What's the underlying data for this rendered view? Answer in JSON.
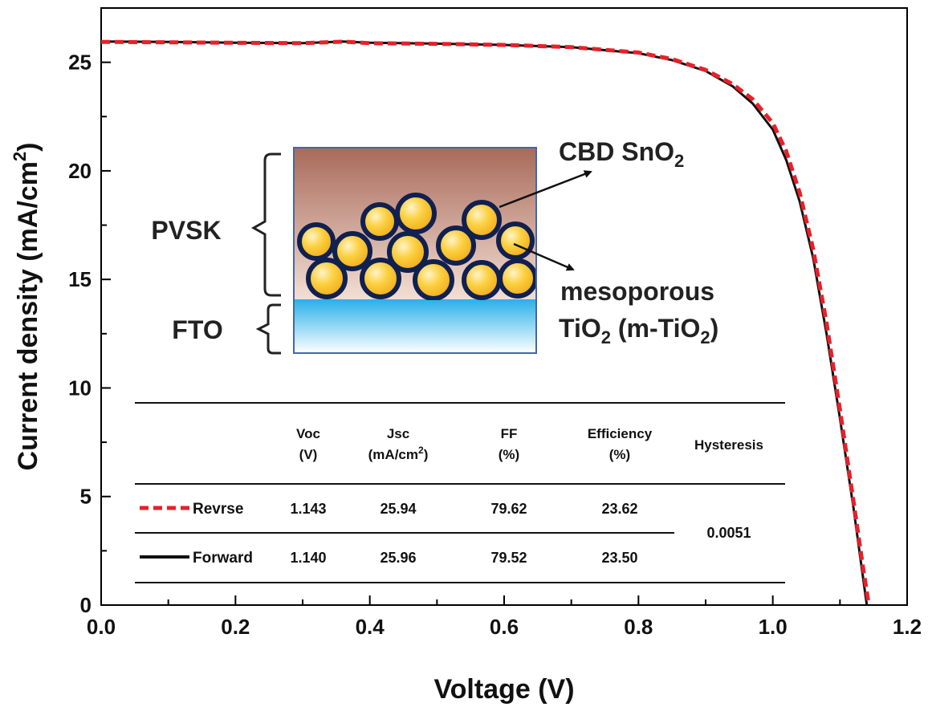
{
  "chart_data": {
    "type": "line",
    "title": "",
    "xlabel": "Voltage (V)",
    "ylabel_main": "Current density (mA/cm",
    "ylabel_sup": "2",
    "ylabel_tail": ")",
    "xlim": [
      0.0,
      1.2
    ],
    "ylim": [
      0,
      27.5
    ],
    "x_ticks": [
      "0.0",
      "0.2",
      "0.4",
      "0.6",
      "0.8",
      "1.0",
      "1.2"
    ],
    "x_tick_values": [
      0.0,
      0.2,
      0.4,
      0.6,
      0.8,
      1.0,
      1.2
    ],
    "y_ticks": [
      "0",
      "5",
      "10",
      "15",
      "20",
      "25"
    ],
    "y_tick_values": [
      0,
      5,
      10,
      15,
      20,
      25
    ],
    "grid": false,
    "series": [
      {
        "name": "Revrse",
        "color": "#e8202a",
        "style": "dashed",
        "x": [
          0.0,
          0.1,
          0.2,
          0.3,
          0.36,
          0.4,
          0.5,
          0.6,
          0.7,
          0.8,
          0.85,
          0.9,
          0.94,
          0.97,
          1.0,
          1.02,
          1.04,
          1.06,
          1.08,
          1.1,
          1.12,
          1.135,
          1.143
        ],
        "y": [
          25.94,
          25.92,
          25.9,
          25.88,
          25.95,
          25.88,
          25.85,
          25.8,
          25.7,
          25.45,
          25.15,
          24.65,
          24.0,
          23.3,
          22.2,
          20.9,
          19.0,
          16.4,
          13.0,
          9.0,
          4.8,
          1.6,
          0.0
        ]
      },
      {
        "name": "Forward",
        "color": "#111111",
        "style": "solid",
        "x": [
          0.0,
          0.1,
          0.2,
          0.3,
          0.36,
          0.4,
          0.5,
          0.6,
          0.7,
          0.8,
          0.85,
          0.9,
          0.94,
          0.97,
          1.0,
          1.02,
          1.04,
          1.06,
          1.08,
          1.1,
          1.12,
          1.132,
          1.14
        ],
        "y": [
          25.96,
          25.94,
          25.9,
          25.88,
          25.96,
          25.9,
          25.86,
          25.8,
          25.7,
          25.42,
          25.1,
          24.6,
          23.9,
          23.1,
          21.9,
          20.5,
          18.6,
          16.0,
          12.5,
          8.6,
          4.5,
          1.8,
          0.0
        ]
      }
    ],
    "inset_diagram": {
      "layer_labels": [
        "PVSK",
        "FTO"
      ],
      "annotation_1_main": "CBD SnO",
      "annotation_1_sub": "2",
      "annotation_2_line1": "mesoporous",
      "annotation_2_line2_a": "TiO",
      "annotation_2_line2_sub": "2",
      "annotation_2_line2_b": " (m-TiO",
      "annotation_2_line2_sub2": "2",
      "annotation_2_line2_c": ")",
      "colors": {
        "perovskite_top": "#a86a5a",
        "perovskite_bottom": "#f3dfd4",
        "fto_top": "#29b0e8",
        "fto_bottom": "#ffffff",
        "particle_fill": "#f8c12a",
        "particle_stroke": "#102050"
      }
    },
    "table": {
      "headers": [
        {
          "line1": "Voc",
          "line2": "(V)"
        },
        {
          "line1": "Jsc",
          "line2": "(mA/cm",
          "line2_sup": "2",
          "line2_tail": ")"
        },
        {
          "line1": "FF",
          "line2": "(%)"
        },
        {
          "line1": "Efficiency",
          "line2": "(%)"
        },
        {
          "line1": "Hysteresis",
          "line2": ""
        }
      ],
      "rows": [
        {
          "name": "Revrse",
          "values": [
            "1.143",
            "25.94",
            "79.62",
            "23.62"
          ]
        },
        {
          "name": "Forward",
          "values": [
            "1.140",
            "25.96",
            "79.52",
            "23.50"
          ]
        }
      ],
      "hysteresis": "0.0051"
    }
  }
}
